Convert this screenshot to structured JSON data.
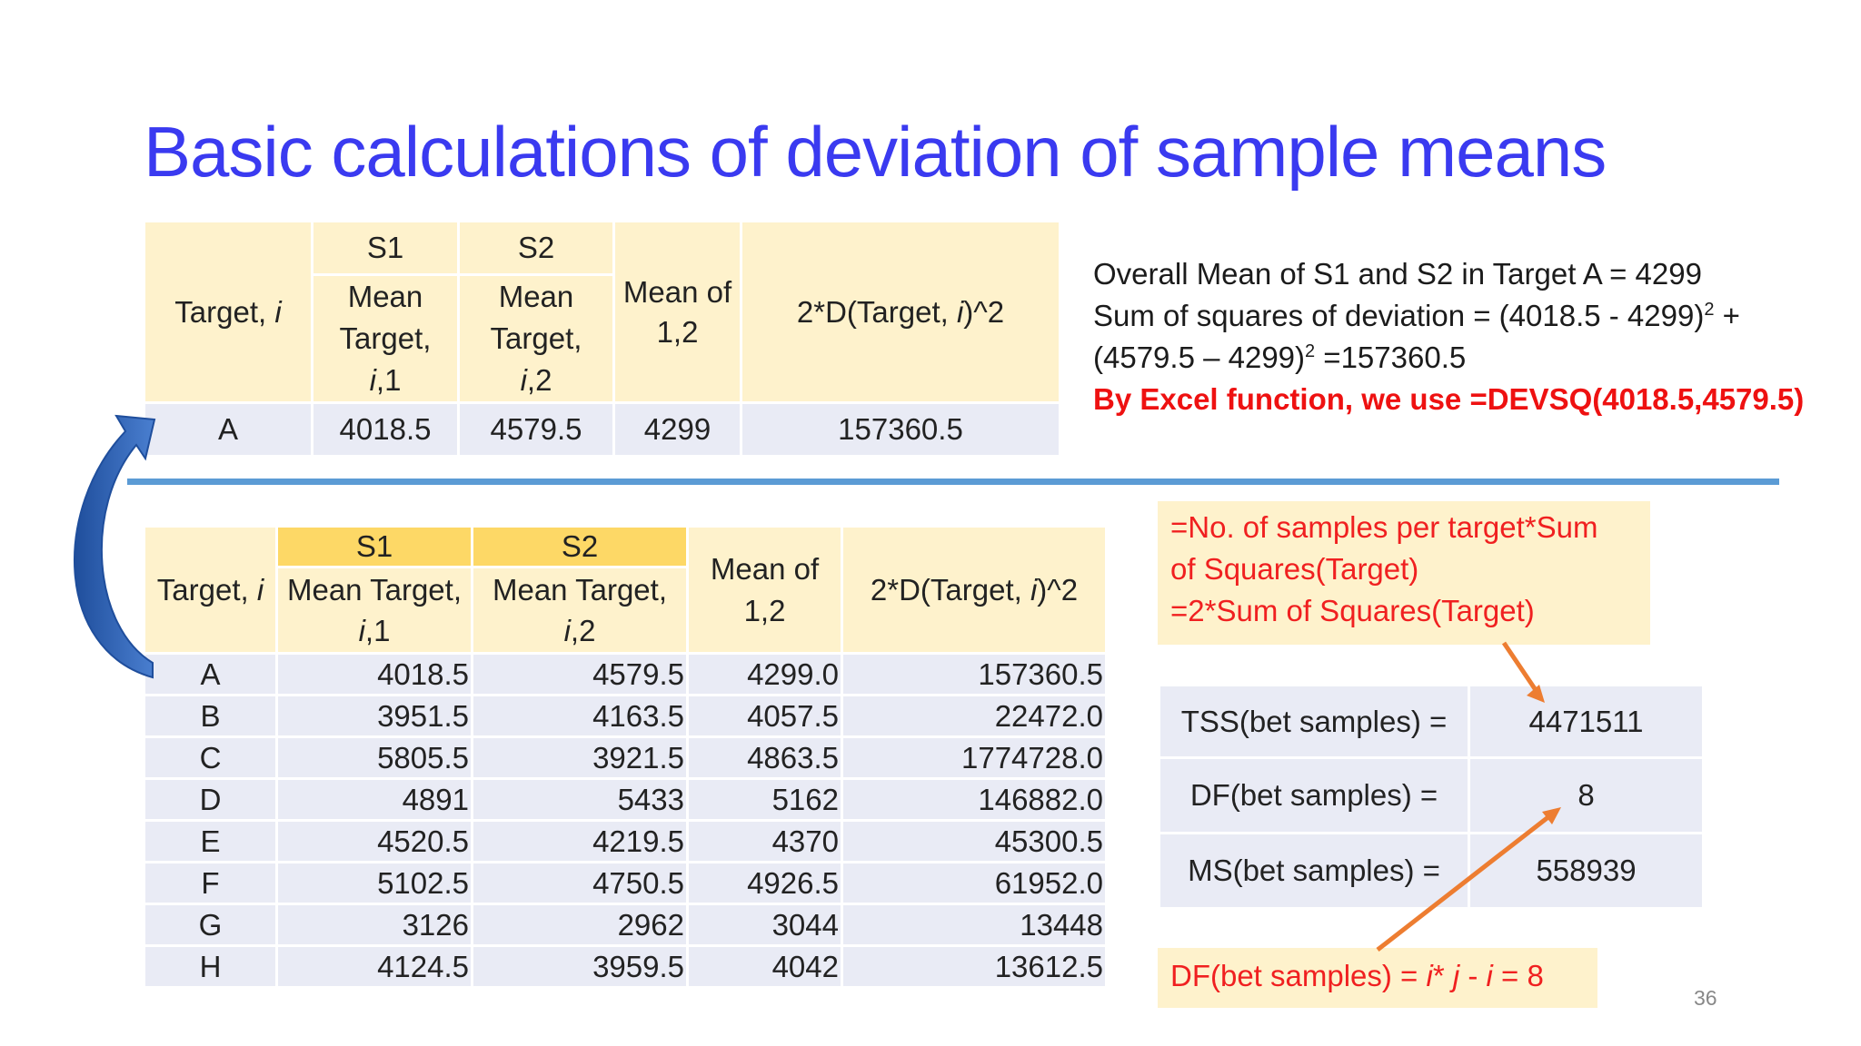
{
  "title": "Basic calculations of deviation of sample means",
  "table1": {
    "col_target": "Target, ",
    "col_target_i": "i",
    "s1": "S1",
    "s2": "S2",
    "mean_t1_a": "Mean Target,",
    "mean_t1_b": "i",
    "mean_t1_c": ",1",
    "mean_t2_a": "Mean Target,",
    "mean_t2_b": "i",
    "mean_t2_c": ",2",
    "mean12": "Mean of 1,2",
    "dev_a": "2*D(Target, ",
    "dev_b": "i",
    "dev_c": ")^2",
    "row": [
      "A",
      "4018.5",
      "4579.5",
      "4299",
      "157360.5"
    ]
  },
  "notes": {
    "line1": "Overall Mean of S1 and S2 in Target A = 4299",
    "line2_a": "Sum of squares of deviation = (4018.5 - 4299)",
    "line2_sup": "2",
    "line2_b": " +",
    "line3_a": "(4579.5 – 4299)",
    "line3_sup": "2",
    "line3_b": " =157360.5",
    "excel": "By Excel function, we use =DEVSQ(4018.5,4579.5)"
  },
  "table2": {
    "col_target": "Target, ",
    "col_target_i": "i",
    "s1": "S1",
    "s2": "S2",
    "mean_t1_a": "Mean Target,",
    "mean_t1_b": "i",
    "mean_t1_c": ",1",
    "mean_t2_a": "Mean Target,",
    "mean_t2_b": "i",
    "mean_t2_c": ",2",
    "mean12": "Mean of 1,2",
    "dev_a": "2*D(Target, ",
    "dev_b": "i",
    "dev_c": ")^2",
    "rows": [
      [
        "A",
        "4018.5",
        "4579.5",
        "4299.0",
        "157360.5"
      ],
      [
        "B",
        "3951.5",
        "4163.5",
        "4057.5",
        "22472.0"
      ],
      [
        "C",
        "5805.5",
        "3921.5",
        "4863.5",
        "1774728.0"
      ],
      [
        "D",
        "4891",
        "5433",
        "5162",
        "146882.0"
      ],
      [
        "E",
        "4520.5",
        "4219.5",
        "4370",
        "45300.5"
      ],
      [
        "F",
        "5102.5",
        "4750.5",
        "4926.5",
        "61952.0"
      ],
      [
        "G",
        "3126",
        "2962",
        "3044",
        "13448"
      ],
      [
        "H",
        "4124.5",
        "3959.5",
        "4042",
        "13612.5"
      ]
    ]
  },
  "formula_box": {
    "line1": "=No. of samples per target*Sum",
    "line2": "of Squares(Target)",
    "line3": "=2*Sum of Squares(Target)"
  },
  "summary": {
    "tss_label": "TSS(bet samples) =",
    "tss_value": "4471511",
    "df_label": "DF(bet samples) =",
    "df_value": "8",
    "ms_label": "MS(bet samples) =",
    "ms_value": "558939"
  },
  "df_box": {
    "text_a": "DF(bet samples) = ",
    "text_i": "i",
    "text_mid": "* ",
    "text_j": "j",
    "text_b": " - ",
    "text_i2": "i",
    "text_c": " = 8"
  },
  "page_number": "36",
  "colors": {
    "title": "#3a3af0",
    "header_fill": "#fef2cc",
    "header_gold": "#fdd866",
    "row_fill": "#e9ebf5",
    "divider": "#5b9bd5",
    "red_text": "#ee1111",
    "orange_arrow": "#ed7d31",
    "blue_arrow": "#2e5fb5"
  }
}
